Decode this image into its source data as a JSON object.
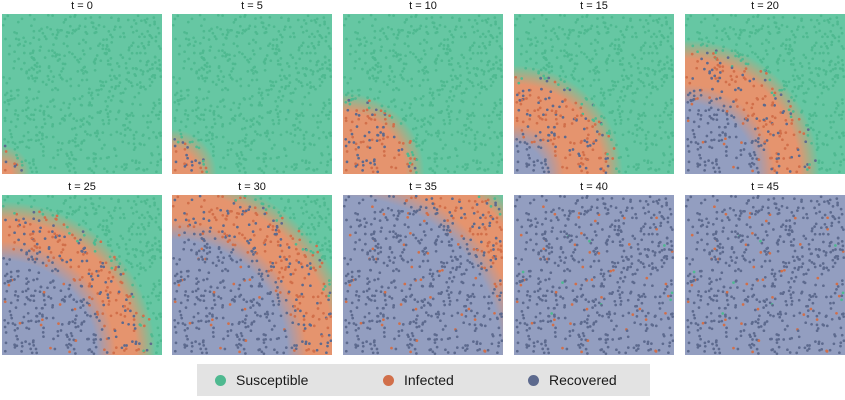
{
  "colors": {
    "susceptible": "#4fb990",
    "infected": "#d16f4a",
    "recovered": "#5d6a8e",
    "field_susceptible": "#66c7a3",
    "field_infected": "#e5946e",
    "field_recovered": "#939ec0",
    "legend_background": "#e3e3e3"
  },
  "legend": {
    "items": [
      {
        "key": "susceptible",
        "label": "Susceptible",
        "icon": "dot-icon"
      },
      {
        "key": "infected",
        "label": "Infected",
        "icon": "dot-icon"
      },
      {
        "key": "recovered",
        "label": "Recovered",
        "icon": "dot-icon"
      }
    ]
  },
  "panels": [
    {
      "title": "t = 0",
      "infected_front": 0.12,
      "recovered_front": 0.0
    },
    {
      "title": "t = 5",
      "infected_front": 0.22,
      "recovered_front": 0.0
    },
    {
      "title": "t = 10",
      "infected_front": 0.45,
      "recovered_front": 0.0
    },
    {
      "title": "t = 15",
      "infected_front": 0.62,
      "recovered_front": 0.25
    },
    {
      "title": "t = 20",
      "infected_front": 0.78,
      "recovered_front": 0.5
    },
    {
      "title": "t = 25",
      "infected_front": 0.9,
      "recovered_front": 0.65
    },
    {
      "title": "t = 30",
      "infected_front": 1.08,
      "recovered_front": 0.78
    },
    {
      "title": "t = 35",
      "infected_front": 1.35,
      "recovered_front": 1.05
    },
    {
      "title": "t = 40",
      "infected_front": 1.7,
      "recovered_front": 1.52
    },
    {
      "title": "t = 45",
      "infected_front": 1.9,
      "recovered_front": 1.85
    }
  ]
}
